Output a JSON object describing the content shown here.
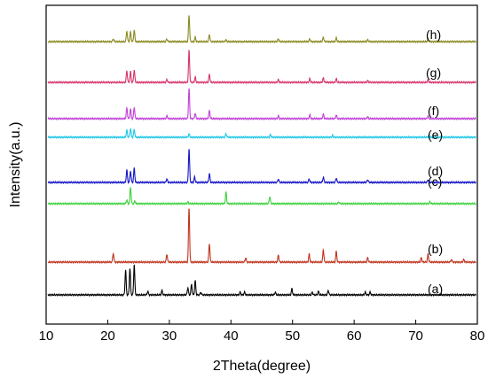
{
  "chart_data": {
    "type": "line",
    "title": "",
    "xlabel": "2Theta(degree)",
    "ylabel": "Intensity(a.u.)",
    "xlim": [
      10,
      80
    ],
    "xticks": [
      10,
      20,
      30,
      40,
      50,
      60,
      70,
      80
    ],
    "yticks_shown": false,
    "grid": false,
    "legend": "inline labels at right end of each trace",
    "series": [
      {
        "name": "(a)",
        "color": "#000000",
        "baseline": 0,
        "peaks": [
          [
            22.9,
            28
          ],
          [
            23.6,
            30
          ],
          [
            24.3,
            34
          ],
          [
            26.5,
            4
          ],
          [
            28.8,
            5
          ],
          [
            33.0,
            8
          ],
          [
            33.6,
            12
          ],
          [
            34.2,
            16
          ],
          [
            35.1,
            3
          ],
          [
            41.5,
            3
          ],
          [
            42.2,
            3
          ],
          [
            47.2,
            3
          ],
          [
            49.9,
            7
          ],
          [
            53.2,
            3
          ],
          [
            54.2,
            4
          ],
          [
            55.8,
            5
          ],
          [
            61.8,
            3
          ],
          [
            62.6,
            3
          ]
        ]
      },
      {
        "name": "(b)",
        "color": "#c0341d",
        "baseline": 0,
        "peaks": [
          [
            20.9,
            10
          ],
          [
            29.6,
            9
          ],
          [
            33.2,
            62
          ],
          [
            36.5,
            21
          ],
          [
            42.4,
            5
          ],
          [
            47.7,
            8
          ],
          [
            52.7,
            9
          ],
          [
            55.0,
            14
          ],
          [
            57.1,
            12
          ],
          [
            62.2,
            5
          ],
          [
            70.9,
            5
          ],
          [
            72.0,
            9
          ],
          [
            75.8,
            3
          ],
          [
            77.8,
            3
          ]
        ]
      },
      {
        "name": "(c)",
        "color": "#3cd23c",
        "baseline": 0,
        "peaks": [
          [
            23.1,
            4
          ],
          [
            23.7,
            19
          ],
          [
            24.4,
            3
          ],
          [
            33.0,
            2
          ],
          [
            39.2,
            13
          ],
          [
            46.3,
            8
          ],
          [
            57.5,
            2
          ],
          [
            72.3,
            2
          ]
        ]
      },
      {
        "name": "(d)",
        "color": "#1515c8",
        "baseline": 0,
        "peaks": [
          [
            23.1,
            14
          ],
          [
            23.7,
            13
          ],
          [
            24.3,
            16
          ],
          [
            29.6,
            4
          ],
          [
            33.2,
            38
          ],
          [
            34.1,
            6
          ],
          [
            36.5,
            10
          ],
          [
            47.7,
            4
          ],
          [
            52.7,
            4
          ],
          [
            55.0,
            6
          ],
          [
            57.1,
            5
          ],
          [
            62.2,
            3
          ],
          [
            72.0,
            3
          ]
        ]
      },
      {
        "name": "(e)",
        "color": "#20c8e6",
        "baseline": 0,
        "peaks": [
          [
            23.1,
            8
          ],
          [
            23.7,
            10
          ],
          [
            24.3,
            9
          ],
          [
            33.2,
            4
          ],
          [
            39.2,
            4
          ],
          [
            46.4,
            3
          ],
          [
            56.5,
            2
          ],
          [
            72.1,
            2
          ]
        ]
      },
      {
        "name": "(f)",
        "color": "#c040d8",
        "baseline": 0,
        "peaks": [
          [
            23.1,
            12
          ],
          [
            23.7,
            11
          ],
          [
            24.3,
            13
          ],
          [
            29.6,
            3
          ],
          [
            33.2,
            34
          ],
          [
            34.2,
            6
          ],
          [
            36.5,
            9
          ],
          [
            47.7,
            3
          ],
          [
            52.8,
            4
          ],
          [
            55.0,
            5
          ],
          [
            57.1,
            4
          ],
          [
            62.2,
            2
          ],
          [
            72.0,
            3
          ]
        ]
      },
      {
        "name": "(g)",
        "color": "#d6336e",
        "baseline": 0,
        "peaks": [
          [
            23.1,
            13
          ],
          [
            23.7,
            12
          ],
          [
            24.3,
            14
          ],
          [
            29.6,
            3
          ],
          [
            33.2,
            36
          ],
          [
            34.2,
            6
          ],
          [
            36.5,
            9
          ],
          [
            47.7,
            3
          ],
          [
            52.8,
            4
          ],
          [
            55.0,
            5
          ],
          [
            57.1,
            4
          ],
          [
            62.2,
            2
          ],
          [
            72.0,
            3
          ]
        ]
      },
      {
        "name": "(h)",
        "color": "#8a8a22",
        "baseline": 0,
        "peaks": [
          [
            20.9,
            3
          ],
          [
            23.1,
            12
          ],
          [
            23.7,
            11
          ],
          [
            24.3,
            13
          ],
          [
            29.6,
            3
          ],
          [
            33.2,
            30
          ],
          [
            34.2,
            5
          ],
          [
            36.5,
            8
          ],
          [
            39.2,
            2
          ],
          [
            47.7,
            3
          ],
          [
            52.8,
            3
          ],
          [
            55.0,
            5
          ],
          [
            57.1,
            4
          ],
          [
            62.2,
            2
          ],
          [
            72.0,
            3
          ]
        ]
      }
    ]
  }
}
